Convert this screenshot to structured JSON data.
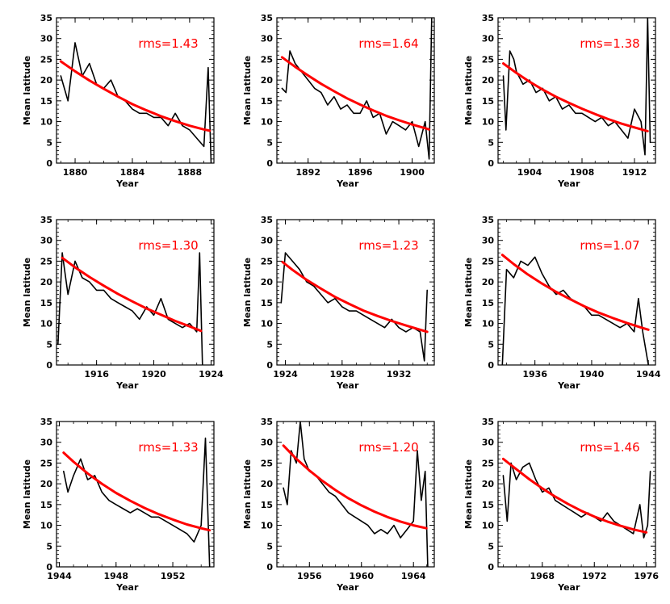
{
  "chart_data": [
    {
      "type": "line",
      "xlabel": "Year",
      "ylabel": "Mean latitude",
      "annotation": "rms=1.43",
      "xlim": [
        1878.7,
        1889.7
      ],
      "ylim": [
        0,
        35
      ],
      "xticks": [
        1880,
        1884,
        1888
      ],
      "yticks": [
        0,
        5,
        10,
        15,
        20,
        25,
        30,
        35
      ],
      "series": [
        {
          "role": "observed",
          "color": "#000000",
          "x": [
            1879.0,
            1879.5,
            1880.0,
            1880.5,
            1881.0,
            1881.5,
            1882.0,
            1882.5,
            1883.0,
            1883.5,
            1884.0,
            1884.5,
            1885.0,
            1885.5,
            1886.0,
            1886.5,
            1887.0,
            1887.5,
            1888.0,
            1888.5,
            1889.0,
            1889.3,
            1889.5
          ],
          "values": [
            21,
            15,
            29,
            21,
            24,
            19,
            18,
            20,
            16,
            15,
            13,
            12,
            12,
            11,
            11,
            9,
            12,
            9,
            8,
            6,
            4,
            23,
            0
          ]
        },
        {
          "role": "fit",
          "color": "#ff0000",
          "x": [
            1879.0,
            1880.0,
            1881.0,
            1882.0,
            1883.0,
            1884.0,
            1885.0,
            1886.0,
            1887.0,
            1888.0,
            1889.0,
            1889.4
          ],
          "values": [
            24.5,
            22.1,
            19.9,
            17.9,
            16.0,
            14.2,
            12.7,
            11.3,
            10.1,
            9.0,
            8.1,
            7.8
          ]
        }
      ]
    },
    {
      "type": "line",
      "xlabel": "Year",
      "ylabel": "Mean latitude",
      "annotation": "rms=1.64",
      "xlim": [
        1889.6,
        1901.7
      ],
      "ylim": [
        0,
        35
      ],
      "xticks": [
        1892,
        1896,
        1900
      ],
      "yticks": [
        0,
        5,
        10,
        15,
        20,
        25,
        30,
        35
      ],
      "series": [
        {
          "role": "observed",
          "color": "#000000",
          "x": [
            1890.0,
            1890.3,
            1890.6,
            1891.0,
            1891.5,
            1892.0,
            1892.5,
            1893.0,
            1893.5,
            1894.0,
            1894.5,
            1895.0,
            1895.5,
            1896.0,
            1896.5,
            1897.0,
            1897.5,
            1898.0,
            1898.5,
            1899.0,
            1899.5,
            1900.0,
            1900.5,
            1901.0,
            1901.3,
            1901.5
          ],
          "values": [
            18,
            17,
            27,
            24,
            22,
            20,
            18,
            17,
            14,
            16,
            13,
            14,
            12,
            12,
            15,
            11,
            12,
            7,
            10,
            9,
            8,
            10,
            4,
            10,
            1,
            35
          ]
        },
        {
          "role": "fit",
          "color": "#ff0000",
          "x": [
            1890.0,
            1891.0,
            1892.0,
            1893.0,
            1894.0,
            1895.0,
            1896.0,
            1897.0,
            1898.0,
            1899.0,
            1900.0,
            1901.0,
            1901.3
          ],
          "values": [
            25.5,
            23.2,
            21.1,
            19.1,
            17.3,
            15.6,
            14.1,
            12.7,
            11.4,
            10.3,
            9.3,
            8.4,
            8.1
          ]
        }
      ]
    },
    {
      "type": "line",
      "xlabel": "Year",
      "ylabel": "Mean latitude",
      "annotation": "rms=1.38",
      "xlim": [
        1901.6,
        1913.6
      ],
      "ylim": [
        0,
        35
      ],
      "xticks": [
        1904,
        1908,
        1912
      ],
      "yticks": [
        0,
        5,
        10,
        15,
        20,
        25,
        30,
        35
      ],
      "series": [
        {
          "role": "observed",
          "color": "#000000",
          "x": [
            1902.0,
            1902.2,
            1902.5,
            1902.8,
            1903.0,
            1903.5,
            1904.0,
            1904.5,
            1905.0,
            1905.5,
            1906.0,
            1906.5,
            1907.0,
            1907.5,
            1908.0,
            1908.5,
            1909.0,
            1909.5,
            1910.0,
            1910.5,
            1911.0,
            1911.5,
            1912.0,
            1912.5,
            1912.8,
            1913.0,
            1913.2
          ],
          "values": [
            21,
            8,
            27,
            25,
            22,
            19,
            20,
            17,
            18,
            15,
            16,
            13,
            14,
            12,
            12,
            11,
            10,
            11,
            9,
            10,
            8,
            6,
            13,
            10,
            2,
            35,
            5
          ]
        },
        {
          "role": "fit",
          "color": "#ff0000",
          "x": [
            1902.0,
            1903.0,
            1904.0,
            1905.0,
            1906.0,
            1907.0,
            1908.0,
            1909.0,
            1910.0,
            1911.0,
            1912.0,
            1913.0
          ],
          "values": [
            24.0,
            21.7,
            19.6,
            17.7,
            16.0,
            14.5,
            13.1,
            11.8,
            10.6,
            9.5,
            8.6,
            7.7
          ]
        }
      ]
    },
    {
      "type": "line",
      "xlabel": "Year",
      "ylabel": "Mean latitude",
      "annotation": "rms=1.30",
      "xlim": [
        1913.2,
        1924.2
      ],
      "ylim": [
        0,
        35
      ],
      "xticks": [
        1916,
        1920,
        1924
      ],
      "yticks": [
        0,
        5,
        10,
        15,
        20,
        25,
        30,
        35
      ],
      "series": [
        {
          "role": "observed",
          "color": "#000000",
          "x": [
            1913.3,
            1913.6,
            1914.0,
            1914.5,
            1915.0,
            1915.5,
            1916.0,
            1916.5,
            1917.0,
            1917.5,
            1918.0,
            1918.5,
            1919.0,
            1919.5,
            1920.0,
            1920.5,
            1921.0,
            1921.5,
            1922.0,
            1922.5,
            1923.0,
            1923.2,
            1923.4
          ],
          "values": [
            5,
            27,
            17,
            25,
            21,
            20,
            18,
            18,
            16,
            15,
            14,
            13,
            11,
            14,
            12,
            16,
            11,
            10,
            9,
            10,
            8,
            27,
            0
          ]
        },
        {
          "role": "fit",
          "color": "#ff0000",
          "x": [
            1913.6,
            1914.5,
            1915.5,
            1916.5,
            1917.5,
            1918.5,
            1919.5,
            1920.5,
            1921.5,
            1922.5,
            1923.3
          ],
          "values": [
            25.8,
            23.5,
            21.2,
            19.1,
            17.1,
            15.3,
            13.6,
            12.1,
            10.6,
            9.3,
            8.2
          ]
        }
      ]
    },
    {
      "type": "line",
      "xlabel": "Year",
      "ylabel": "Mean latitude",
      "annotation": "rms=1.23",
      "xlim": [
        1923.4,
        1934.5
      ],
      "ylim": [
        0,
        35
      ],
      "xticks": [
        1924,
        1928,
        1932
      ],
      "yticks": [
        0,
        5,
        10,
        15,
        20,
        25,
        30,
        35
      ],
      "series": [
        {
          "role": "observed",
          "color": "#000000",
          "x": [
            1923.7,
            1924.0,
            1924.5,
            1925.0,
            1925.5,
            1926.0,
            1926.5,
            1927.0,
            1927.5,
            1928.0,
            1928.5,
            1929.0,
            1929.5,
            1930.0,
            1930.5,
            1931.0,
            1931.5,
            1932.0,
            1932.5,
            1933.0,
            1933.5,
            1933.8,
            1934.0
          ],
          "values": [
            15,
            27,
            25,
            23,
            20,
            19,
            17,
            15,
            16,
            14,
            13,
            13,
            12,
            11,
            10,
            9,
            11,
            9,
            8,
            9,
            8,
            1,
            18
          ]
        },
        {
          "role": "fit",
          "color": "#ff0000",
          "x": [
            1923.8,
            1924.5,
            1925.5,
            1926.5,
            1927.5,
            1928.5,
            1929.5,
            1930.5,
            1931.5,
            1932.5,
            1933.5,
            1934.0
          ],
          "values": [
            24.8,
            22.9,
            20.5,
            18.4,
            16.4,
            14.7,
            13.1,
            11.8,
            10.6,
            9.5,
            8.5,
            8.0
          ]
        }
      ]
    },
    {
      "type": "line",
      "xlabel": "Year",
      "ylabel": "Mean latitude",
      "annotation": "rms=1.07",
      "xlim": [
        1933.4,
        1944.5
      ],
      "ylim": [
        0,
        35
      ],
      "xticks": [
        1936,
        1940,
        1944
      ],
      "yticks": [
        0,
        5,
        10,
        15,
        20,
        25,
        30,
        35
      ],
      "series": [
        {
          "role": "observed",
          "color": "#000000",
          "x": [
            1933.7,
            1934.0,
            1934.5,
            1935.0,
            1935.5,
            1936.0,
            1936.5,
            1937.0,
            1937.5,
            1938.0,
            1938.5,
            1939.0,
            1939.5,
            1940.0,
            1940.5,
            1941.0,
            1941.5,
            1942.0,
            1942.5,
            1943.0,
            1943.3,
            1943.6,
            1944.0
          ],
          "values": [
            0,
            23,
            21,
            25,
            24,
            26,
            22,
            19,
            17,
            18,
            16,
            15,
            14,
            12,
            12,
            11,
            10,
            9,
            10,
            8,
            16,
            8,
            0
          ]
        },
        {
          "role": "fit",
          "color": "#ff0000",
          "x": [
            1933.7,
            1934.5,
            1935.5,
            1936.5,
            1937.5,
            1938.5,
            1939.5,
            1940.5,
            1941.5,
            1942.5,
            1943.5,
            1944.0
          ],
          "values": [
            26.5,
            24.3,
            21.8,
            19.6,
            17.6,
            15.8,
            14.1,
            12.6,
            11.3,
            10.1,
            9.0,
            8.5
          ]
        }
      ]
    },
    {
      "type": "line",
      "xlabel": "Year",
      "ylabel": "Mean latitude",
      "annotation": "rms=1.33",
      "xlim": [
        1943.8,
        1954.9
      ],
      "ylim": [
        0,
        35
      ],
      "xticks": [
        1944,
        1948,
        1952
      ],
      "yticks": [
        0,
        5,
        10,
        15,
        20,
        25,
        30,
        35
      ],
      "series": [
        {
          "role": "observed",
          "color": "#000000",
          "x": [
            1944.3,
            1944.6,
            1945.0,
            1945.5,
            1946.0,
            1946.5,
            1947.0,
            1947.5,
            1948.0,
            1948.5,
            1949.0,
            1949.5,
            1950.0,
            1950.5,
            1951.0,
            1951.5,
            1952.0,
            1952.5,
            1953.0,
            1953.5,
            1954.0,
            1954.3,
            1954.6
          ],
          "values": [
            23,
            18,
            22,
            26,
            21,
            22,
            18,
            16,
            15,
            14,
            13,
            14,
            13,
            12,
            12,
            11,
            10,
            9,
            8,
            6,
            10,
            31,
            0
          ]
        },
        {
          "role": "fit",
          "color": "#ff0000",
          "x": [
            1944.3,
            1945.0,
            1946.0,
            1947.0,
            1948.0,
            1949.0,
            1950.0,
            1951.0,
            1952.0,
            1953.0,
            1954.0,
            1954.6
          ],
          "values": [
            27.5,
            25.3,
            22.5,
            20.0,
            17.8,
            15.9,
            14.2,
            12.7,
            11.4,
            10.2,
            9.3,
            8.8
          ]
        }
      ]
    },
    {
      "type": "line",
      "xlabel": "Year",
      "ylabel": "Mean latitude",
      "annotation": "rms=1.20",
      "xlim": [
        1953.5,
        1965.6
      ],
      "ylim": [
        0,
        35
      ],
      "xticks": [
        1956,
        1960,
        1964
      ],
      "yticks": [
        0,
        5,
        10,
        15,
        20,
        25,
        30,
        35
      ],
      "series": [
        {
          "role": "observed",
          "color": "#000000",
          "x": [
            1954.0,
            1954.3,
            1954.6,
            1955.0,
            1955.3,
            1955.6,
            1956.0,
            1956.5,
            1957.0,
            1957.5,
            1958.0,
            1958.5,
            1959.0,
            1959.5,
            1960.0,
            1960.5,
            1961.0,
            1961.5,
            1962.0,
            1962.5,
            1963.0,
            1963.5,
            1964.0,
            1964.3,
            1964.6,
            1964.9,
            1965.1
          ],
          "values": [
            19,
            15,
            28,
            25,
            35,
            26,
            23,
            22,
            20,
            18,
            17,
            15,
            13,
            12,
            11,
            10,
            8,
            9,
            8,
            10,
            7,
            9,
            11,
            28,
            16,
            23,
            0
          ]
        },
        {
          "role": "fit",
          "color": "#ff0000",
          "x": [
            1954.0,
            1955.0,
            1956.0,
            1957.0,
            1958.0,
            1959.0,
            1960.0,
            1961.0,
            1962.0,
            1963.0,
            1964.0,
            1965.0
          ],
          "values": [
            29.2,
            26.0,
            23.2,
            20.7,
            18.5,
            16.5,
            14.8,
            13.3,
            12.0,
            10.9,
            10.0,
            9.3
          ]
        }
      ]
    },
    {
      "type": "line",
      "xlabel": "Year",
      "ylabel": "Mean latitude",
      "annotation": "rms=1.46",
      "xlim": [
        1964.6,
        1976.7
      ],
      "ylim": [
        0,
        35
      ],
      "xticks": [
        1968,
        1972,
        1976
      ],
      "yticks": [
        0,
        5,
        10,
        15,
        20,
        25,
        30,
        35
      ],
      "series": [
        {
          "role": "observed",
          "color": "#000000",
          "x": [
            1965.0,
            1965.3,
            1965.6,
            1966.0,
            1966.5,
            1967.0,
            1967.5,
            1968.0,
            1968.5,
            1969.0,
            1969.5,
            1970.0,
            1970.5,
            1971.0,
            1971.5,
            1972.0,
            1972.5,
            1973.0,
            1973.5,
            1974.0,
            1974.5,
            1975.0,
            1975.5,
            1975.8,
            1976.1,
            1976.3
          ],
          "values": [
            22,
            11,
            25,
            21,
            24,
            25,
            21,
            18,
            19,
            16,
            15,
            14,
            13,
            12,
            13,
            12,
            11,
            13,
            11,
            10,
            9,
            8,
            15,
            7,
            10,
            23
          ]
        },
        {
          "role": "fit",
          "color": "#ff0000",
          "x": [
            1965.0,
            1966.0,
            1967.0,
            1968.0,
            1969.0,
            1970.0,
            1971.0,
            1972.0,
            1973.0,
            1974.0,
            1975.0,
            1976.0
          ],
          "values": [
            26.0,
            23.5,
            21.1,
            18.9,
            16.9,
            15.1,
            13.5,
            12.1,
            10.9,
            9.9,
            9.0,
            8.3
          ]
        }
      ]
    }
  ]
}
